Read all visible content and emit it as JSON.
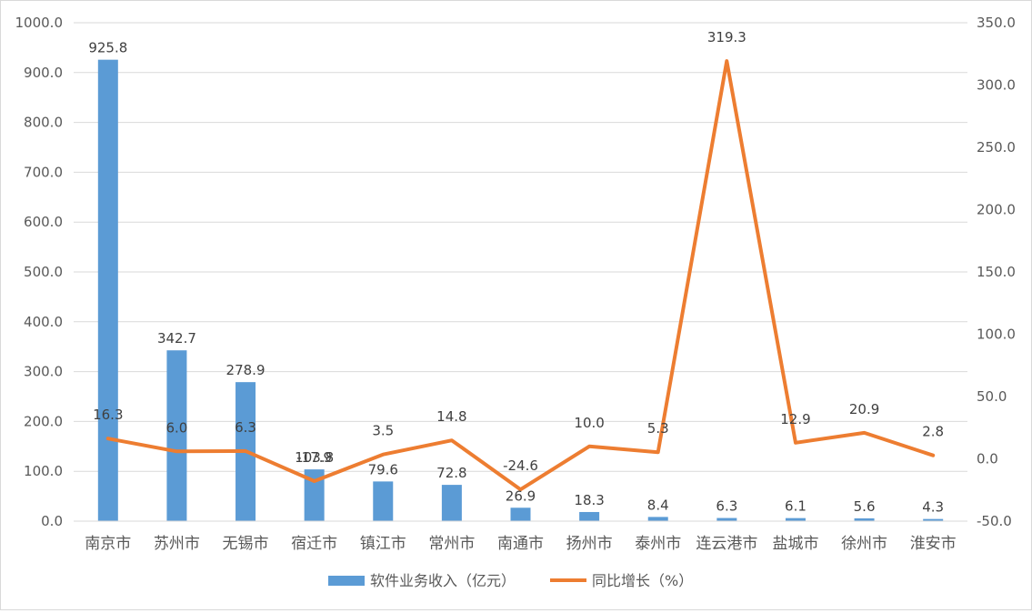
{
  "chart_data": {
    "type": "bar",
    "categories": [
      "南京市",
      "苏州市",
      "无锡市",
      "宿迁市",
      "镇江市",
      "常州市",
      "南通市",
      "扬州市",
      "泰州市",
      "连云港市",
      "盐城市",
      "徐州市",
      "淮安市"
    ],
    "series": [
      {
        "name": "软件业务收入（亿元）",
        "type": "bar",
        "axis": "left",
        "color": "#5b9bd5",
        "values": [
          925.8,
          342.7,
          278.9,
          103.8,
          79.6,
          72.8,
          26.9,
          18.3,
          8.4,
          6.3,
          6.1,
          5.6,
          4.3
        ],
        "labels": [
          "925.8",
          "342.7",
          "278.9",
          "103.8",
          "79.6",
          "72.8",
          "26.9",
          "18.3",
          "8.4",
          "6.3",
          "6.1",
          "5.6",
          "4.3"
        ]
      },
      {
        "name": "同比增长（%）",
        "type": "line",
        "axis": "right",
        "color": "#ed7d31",
        "values": [
          16.3,
          6.0,
          6.3,
          -17.9,
          3.5,
          14.8,
          -24.6,
          10.0,
          5.3,
          319.3,
          12.9,
          20.9,
          2.8
        ],
        "labels": [
          "16.3",
          "6.0",
          "6.3",
          "-17.9",
          "3.5",
          "14.8",
          "-24.6",
          "10.0",
          "5.3",
          "319.3",
          "12.9",
          "20.9",
          "2.8"
        ]
      }
    ],
    "y_left": {
      "min": 0,
      "max": 1000,
      "step": 100,
      "tick_labels": [
        "0.0",
        "100.0",
        "200.0",
        "300.0",
        "400.0",
        "500.0",
        "600.0",
        "700.0",
        "800.0",
        "900.0",
        "1000.0"
      ]
    },
    "y_right": {
      "min": -50,
      "max": 350,
      "step": 50,
      "tick_labels": [
        "-50.0",
        "0.0",
        "50.0",
        "100.0",
        "150.0",
        "200.0",
        "250.0",
        "300.0",
        "350.0"
      ]
    },
    "grid": true,
    "legend_position": "bottom"
  }
}
